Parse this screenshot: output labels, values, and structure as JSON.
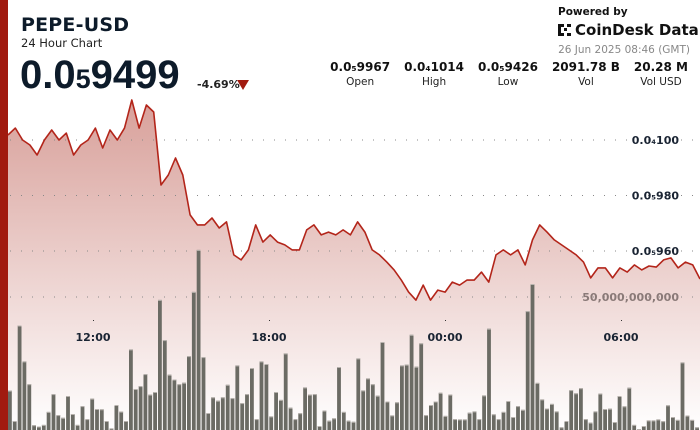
{
  "header": {
    "title": "PEPE-USD",
    "subtitle": "24 Hour Chart",
    "price": {
      "lead": "0.0",
      "zeros": "5",
      "digits": "9499"
    },
    "change": "-4.69%",
    "change_direction": "down",
    "powered_by": "Powered by",
    "brand": "CoinDesk Data",
    "timestamp": "26 Jun 2025 08:46 (GMT)"
  },
  "stats": [
    {
      "value": "0.0₅9967",
      "label": "Open"
    },
    {
      "value": "0.0₄1014",
      "label": "High"
    },
    {
      "value": "0.0₅9426",
      "label": "Low"
    },
    {
      "value": "2091.78 B",
      "label": "Vol"
    },
    {
      "value": "20.28 M",
      "label": "Vol USD"
    }
  ],
  "colors": {
    "accent": "#a11a0f",
    "line": "#b3251a",
    "fill_top": "#d8a09a",
    "volume": "#6b6b64",
    "grid": "#777777"
  },
  "chart_data": {
    "type": "area",
    "price_axis": {
      "ticks": [
        {
          "value": 1e-05,
          "label": "0.0₄100"
        },
        {
          "value": 9.8e-06,
          "label": "0.0₅980"
        },
        {
          "value": 9.6e-06,
          "label": "0.0₅960"
        }
      ],
      "range": [
        9e-06,
        1.025e-05
      ]
    },
    "volume_axis": {
      "ticks": [
        {
          "value": 50000000000,
          "label": "50,000,000,000"
        }
      ],
      "range": [
        0,
        70000000000
      ]
    },
    "x_ticks": [
      "12:00",
      "18:00",
      "00:00",
      "06:00"
    ],
    "grid": "dotted horizontal",
    "price_series": [
      10.018,
      10.043,
      10.0,
      9.982,
      9.946,
      10.0,
      10.036,
      10.0,
      10.025,
      9.946,
      9.982,
      10.0,
      10.043,
      9.971,
      10.036,
      10.0,
      10.043,
      10.144,
      10.043,
      10.126,
      10.101,
      9.838,
      9.874,
      9.935,
      9.874,
      9.73,
      9.694,
      9.694,
      9.719,
      9.683,
      9.705,
      9.586,
      9.568,
      9.604,
      9.694,
      9.632,
      9.658,
      9.632,
      9.622,
      9.604,
      9.604,
      9.676,
      9.694,
      9.658,
      9.668,
      9.658,
      9.676,
      9.658,
      9.705,
      9.668,
      9.604,
      9.586,
      9.56,
      9.532,
      9.495,
      9.452,
      9.423,
      9.477,
      9.423,
      9.459,
      9.452,
      9.488,
      9.477,
      9.495,
      9.495,
      9.524,
      9.488,
      9.586,
      9.604,
      9.586,
      9.604,
      9.55,
      9.64,
      9.694,
      9.668,
      9.64,
      9.622,
      9.604,
      9.586,
      9.56,
      9.503,
      9.539,
      9.539,
      9.503,
      9.539,
      9.524,
      9.55,
      9.532,
      9.546,
      9.542,
      9.568,
      9.575,
      9.539,
      9.56,
      9.55,
      9.499
    ],
    "price_unit_multiplier": 1e-06,
    "volume_series_billions": [
      14.8,
      3.4,
      39.3,
      25.8,
      17.2,
      1.8,
      1.3,
      1.9,
      6.8,
      13.5,
      5.6,
      4.6,
      12.8,
      6.0,
      1.9,
      9.0,
      4.1,
      11.8,
      7.9,
      7.8,
      3.4,
      0.6,
      9.4,
      6.9,
      3.4,
      30.3,
      15.4,
      16.5,
      21.0,
      13.3,
      14.3,
      48.9,
      33.8,
      20.8,
      19.0,
      17.2,
      17.8,
      27.8,
      51.9,
      67.7,
      27.4,
      6.4,
      12.3,
      11.0,
      12.3,
      17.0,
      12.0,
      24.3,
      10.1,
      13.5,
      23.3,
      4.1,
      25.8,
      24.8,
      5.1,
      14.3,
      11.3,
      28.8,
      8.4,
      4.1,
      6.3,
      16.0,
      13.3,
      13.5,
      1.5,
      7.3,
      3.5,
      4.4,
      23.7,
      6.8,
      3.5,
      3.1,
      26.9,
      14.9,
      19.4,
      17.2,
      12.9,
      33.1,
      10.7,
      5.5,
      10.4,
      24.3,
      24.6,
      35.8,
      23.8,
      32.6,
      5.6,
      9.4,
      10.7,
      14.0,
      5.3,
      13.3,
      4.1,
      4.0,
      4.0,
      6.5,
      7.0,
      4.1,
      13.0,
      38.1,
      5.9,
      4.1,
      6.8,
      10.9,
      4.9,
      9.0,
      7.6,
      44.7,
      54.9,
      17.7,
      11.5,
      8.1,
      9.8,
      7.0,
      1.0,
      3.4,
      15.0,
      13.8,
      15.7,
      4.1,
      2.8,
      7.0,
      13.7,
      7.9,
      8.0,
      3.0,
      12.8,
      8.9,
      15.9,
      1.9,
      0.3,
      1.5,
      3.6,
      3.6,
      4.0,
      3.3,
      9.3,
      4.9,
      3.8,
      25.4,
      5.4,
      3.8,
      1.0
    ]
  }
}
